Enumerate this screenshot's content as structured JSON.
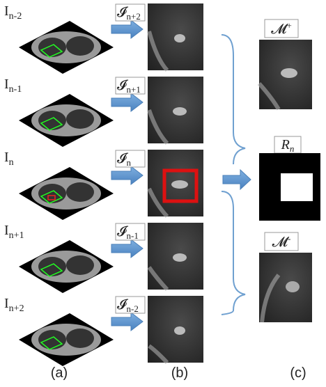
{
  "slices": [
    {
      "base": "I",
      "sub": "n-2"
    },
    {
      "base": "I",
      "sub": "n-1"
    },
    {
      "base": "I",
      "sub": "n"
    },
    {
      "base": "I",
      "sub": "n+1"
    },
    {
      "base": "I",
      "sub": "n+2"
    }
  ],
  "patches": [
    {
      "base": "𝓘",
      "sub": "n+2"
    },
    {
      "base": "𝓘",
      "sub": "n+1"
    },
    {
      "base": "𝓘",
      "sub": "n"
    },
    {
      "base": "𝓘",
      "sub": "n-1"
    },
    {
      "base": "𝓘",
      "sub": "n-2"
    }
  ],
  "outputs": [
    {
      "base": "𝓜",
      "sup": "+"
    },
    {
      "base": "R",
      "sub": "n"
    },
    {
      "base": "𝓜",
      "sup": "-"
    }
  ],
  "captions": [
    "(a)",
    "(b)",
    "(c)"
  ]
}
